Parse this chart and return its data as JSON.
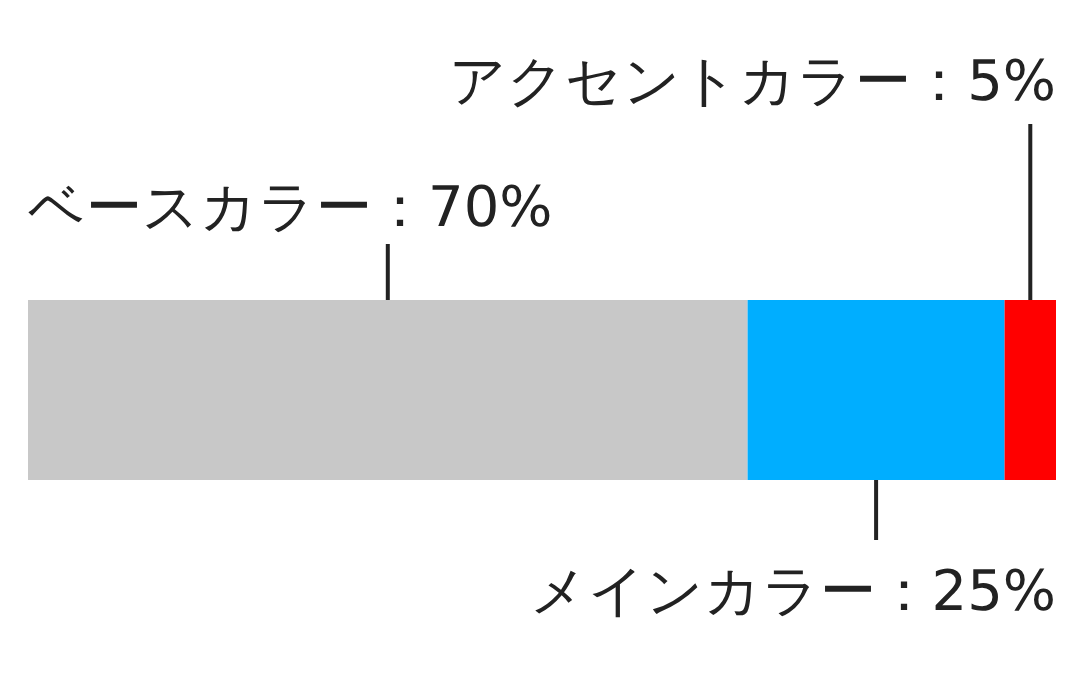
{
  "chart_data": {
    "type": "bar",
    "orientation": "horizontal",
    "stacked": true,
    "categories": [
      null
    ],
    "xlim": [
      0,
      100
    ],
    "series": [
      {
        "color": "#c8c8c8",
        "values": [
          70
        ],
        "value_labels": [
          "ベースカラー：70%"
        ]
      },
      {
        "color": "#00aeff",
        "values": [
          25
        ],
        "value_labels": [
          "メインカラー：25%"
        ]
      },
      {
        "color": "#ff0000",
        "values": [
          5
        ],
        "value_labels": [
          "アクセントカラー：5%"
        ]
      }
    ]
  }
}
